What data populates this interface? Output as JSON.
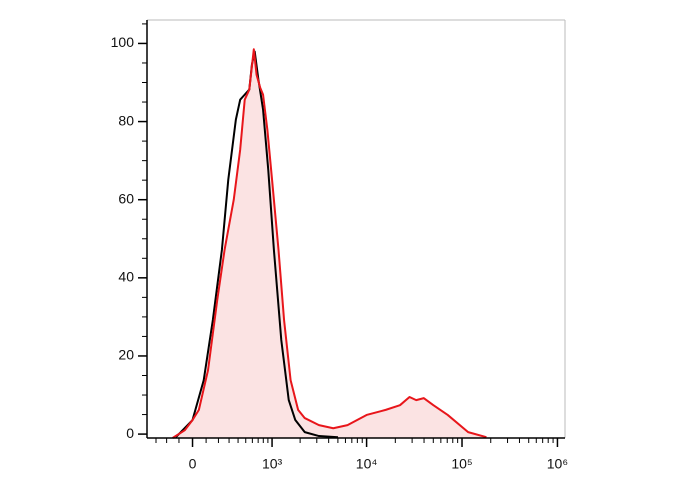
{
  "chart_data": {
    "type": "histogram-overlay",
    "xscale": "biexponential",
    "xlim": [
      -400,
      1200000
    ],
    "xticks": [
      0,
      {
        "value": 1000,
        "label": "10³"
      },
      {
        "value": 10000,
        "label": "10⁴"
      },
      {
        "value": 100000,
        "label": "10⁵"
      },
      {
        "value": 1000000,
        "label": "10⁶"
      }
    ],
    "xminorticks": [
      -300,
      -200,
      -100,
      100,
      200,
      300,
      400,
      500,
      600,
      700,
      800,
      900,
      2000,
      3000,
      4000,
      5000,
      6000,
      7000,
      8000,
      9000,
      20000,
      30000,
      40000,
      50000,
      60000,
      70000,
      80000,
      90000,
      200000,
      300000,
      400000,
      500000,
      600000,
      700000,
      800000,
      900000
    ],
    "ylim": [
      -1,
      106
    ],
    "yticks": [
      0,
      20,
      40,
      60,
      80,
      100
    ],
    "yminorticks": [
      5,
      10,
      15,
      25,
      30,
      35,
      45,
      50,
      55,
      65,
      70,
      75,
      85,
      90,
      95,
      105
    ],
    "series": [
      {
        "color": "#000000",
        "fill": null,
        "x": [
          -124,
          0,
          82,
          153,
          231,
          292,
          374,
          426,
          486,
          552,
          593,
          639,
          704,
          795,
          908,
          1047,
          1259,
          1514,
          1778,
          2239,
          3162,
          5012
        ],
        "values": [
          -0.8,
          3.6,
          13.8,
          29.2,
          47.2,
          65.1,
          80.5,
          85.6,
          86.9,
          88.2,
          94.6,
          97.9,
          90.8,
          83.1,
          67.7,
          47.2,
          24.1,
          8.7,
          3.6,
          0.5,
          -0.5,
          -0.8
        ]
      },
      {
        "color": "#e8161b",
        "fill": "#fbe3e3",
        "x": [
          -150,
          -56,
          0,
          46,
          115,
          190,
          256,
          350,
          426,
          486,
          552,
          624,
          671,
          738,
          795,
          888,
          1000,
          1175,
          1349,
          1585,
          1905,
          2239,
          3162,
          4467,
          6310,
          10000,
          15849,
          22387,
          28184,
          33113,
          39811,
          50119,
          70795,
          115900,
          180300
        ],
        "values": [
          -1,
          1,
          3.6,
          6.2,
          16.4,
          34.4,
          47.2,
          60,
          72.8,
          85.6,
          88.2,
          98.5,
          92,
          88.7,
          86.9,
          77.9,
          65.1,
          47.2,
          29.2,
          13.8,
          6.2,
          4.1,
          2.3,
          1.5,
          2.3,
          4.9,
          6.2,
          7.4,
          9.5,
          8.7,
          9.2,
          7.4,
          4.9,
          0.5,
          -0.8
        ]
      }
    ]
  }
}
